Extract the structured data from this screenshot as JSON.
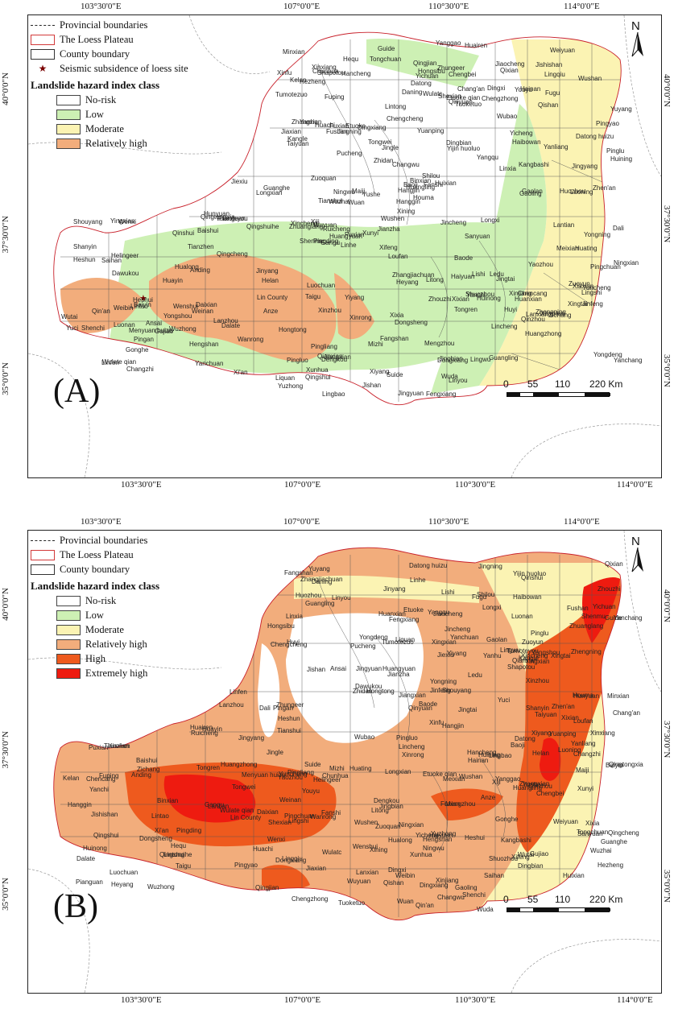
{
  "axes": {
    "top_ticks": [
      "103°30'0\"E",
      "107°0'0\"E",
      "110°30'0\"E",
      "114°0'0\"E"
    ],
    "bottom_ticks": [
      "103°30'0\"E",
      "107°0'0\"E",
      "110°30'0\"E",
      "114°0'0\"E"
    ],
    "lat_ticks": [
      "40°0'0\"N",
      "37°30'0\"N",
      "35°0'0\"N"
    ]
  },
  "legend_common": {
    "provincial": "Provincial boundaries",
    "loess": "The Loess Plateau",
    "county": "County boundary",
    "seismic": "Seismic subsidence of loess site",
    "title": "Landslide hazard index class"
  },
  "classes": {
    "no_risk": {
      "label": "No-risk",
      "color": "#ffffff"
    },
    "low": {
      "label": "Low",
      "color": "#cdf0b4"
    },
    "moderate": {
      "label": "Moderate",
      "color": "#fbf3b3"
    },
    "rel_high": {
      "label": "Relatively high",
      "color": "#f2ad7c"
    },
    "high": {
      "label": "High",
      "color": "#ee5a1e"
    },
    "extreme": {
      "label": "Extremely high",
      "color": "#ee1b10"
    }
  },
  "scale": {
    "labels": [
      "0",
      "55",
      "110",
      "220 Km"
    ]
  },
  "north": "N",
  "panels": {
    "a": {
      "label": "(A)"
    },
    "b": {
      "label": "(B)"
    }
  },
  "place_names": [
    "Linhe",
    "Wuyuan",
    "Wulate qian",
    "Hangjin",
    "Dalate",
    "Zhungeer",
    "Etuoke",
    "Etuoke qian",
    "Wushen",
    "Yuyang",
    "Shenmu",
    "Dingbian",
    "Huachi",
    "Zhidan",
    "Ansai",
    "Yanchuan",
    "Fuxian",
    "Huangling",
    "Jingtai",
    "Shapotou",
    "Haiyuan",
    "Huining",
    "Xiji",
    "Pingliang",
    "Tianshui",
    "Dingxi",
    "Lanzhou",
    "Yongdeng",
    "Ledu",
    "Guide",
    "Tongren",
    "Hanggin",
    "Dengkou",
    "Xining",
    "Menyuan huizu",
    "Datong huizu",
    "Yanchi",
    "Jingbian",
    "Hengshan",
    "Mizhi",
    "Fugu",
    "Hequ",
    "Pianguan",
    "Youyu",
    "Hongsibu",
    "Kelan",
    "Ningwu",
    "Wutai",
    "Xinzhou",
    "Lishi",
    "Linfen",
    "Heshun",
    "Zuoquan",
    "Xiyang",
    "Yushe",
    "Changzhi",
    "Jincheng",
    "Yuncheng",
    "Lingbao",
    "Luoning",
    "Yiyang",
    "Mengzhou",
    "Xinxiang",
    "Huixian",
    "Lincheng",
    "Wuan",
    "Xingtai",
    "Shexian",
    "Qinyuan",
    "Qinshui",
    "Dali",
    "Huayin",
    "Weinan",
    "Xi'an",
    "Baoji",
    "Qishan",
    "Longxian",
    "Huating",
    "Jingning",
    "Zhuanglang",
    "Qin'an",
    "Gangu",
    "Wushan",
    "Zhangxian",
    "Minxian",
    "Lintao",
    "Weiyuan",
    "Tongwei",
    "Longxi",
    "Anding",
    "Yuzhong",
    "Gaolan",
    "Baiyin",
    "Jingyuan",
    "Pingchuan",
    "Huanxian",
    "Qingcheng",
    "Heshui",
    "Ningxian",
    "Xifeng",
    "Zhengning",
    "Xunyi",
    "Binxian",
    "Liquan",
    "Qianxian",
    "Chunhua",
    "Jingyang",
    "Yaozhou",
    "Tongchuan",
    "Fuping",
    "Pucheng",
    "Baishui",
    "Chengcheng",
    "Heyang",
    "Hancheng",
    "Yichuan",
    "Luochuan",
    "Yanchang",
    "Zichang",
    "Suide",
    "Qingjian",
    "Shilou",
    "Daning",
    "Xixian",
    "Puxian",
    "Jishan",
    "Wanrong",
    "Ruicheng",
    "Xiaxian",
    "Anze",
    "Fushan",
    "Yicheng",
    "Houma",
    "Jiangxian",
    "Wenxi",
    "Yanhu",
    "Xinjiang",
    "Wenshui",
    "Jiaocheng",
    "Taiyuan",
    "Yangqu",
    "Shouyang",
    "Pingding",
    "Yuci",
    "Taigu",
    "Qixian",
    "Pingyao",
    "Jiexiu",
    "Lingshi",
    "Huozhou",
    "Hongtong",
    "Gujiao",
    "Loufan",
    "Jinyang",
    "Xinfu",
    "Dingxiang",
    "Yuanping",
    "Daixian",
    "Fanshi",
    "Lingqiu",
    "Guangling",
    "Yanggao",
    "Tianzhen",
    "Datong",
    "Hunyuan",
    "Yingxian",
    "Shanyin",
    "Shuozhou",
    "Pinglu",
    "Zuoyun",
    "Huairen",
    "Xinrong",
    "Dongsheng",
    "Yijin huoluo",
    "Kangbashi",
    "Jiaxian",
    "Wubao",
    "Lin County",
    "Fangshan",
    "Jingle",
    "Lanxian",
    "Xingxian",
    "Baode",
    "Shenchi",
    "Wuzhai",
    "Tumotezuo",
    "Tumoteyou",
    "Tuoketuo",
    "Helingeer",
    "Qingshuihe",
    "Saihan",
    "Xincheng",
    "Wulatc",
    "Yongning",
    "Qingtongxia",
    "Litong",
    "Wuzhong",
    "Lingwu",
    "Helan",
    "Xixia",
    "Jinfeng",
    "Pingluo",
    "Huinong",
    "Dawukou",
    "Haibowan",
    "Wuda",
    "Hainan",
    "Gonghe",
    "Huangzhong",
    "Huangyuan",
    "Chengbei",
    "Chengzhong",
    "Pingan",
    "Hualong",
    "Xunhua",
    "Jianzha",
    "Linxia",
    "Kangle",
    "Guanghe",
    "Dongxiang",
    "Jishishan",
    "Hezheng",
    "Zhangjiachuan",
    "Qingshui",
    "Maiji",
    "Qinzhou",
    "Chencang",
    "Weibin",
    "Fengxiang",
    "Linyou",
    "Yongshou",
    "Changwu",
    "Meixian",
    "Zhouzhi",
    "Huyi",
    "Chang'an",
    "Lantian",
    "Gaoling",
    "Lintong",
    "Yanliang",
    "Sanyuan",
    "Luonan",
    "Zhen'an"
  ]
}
